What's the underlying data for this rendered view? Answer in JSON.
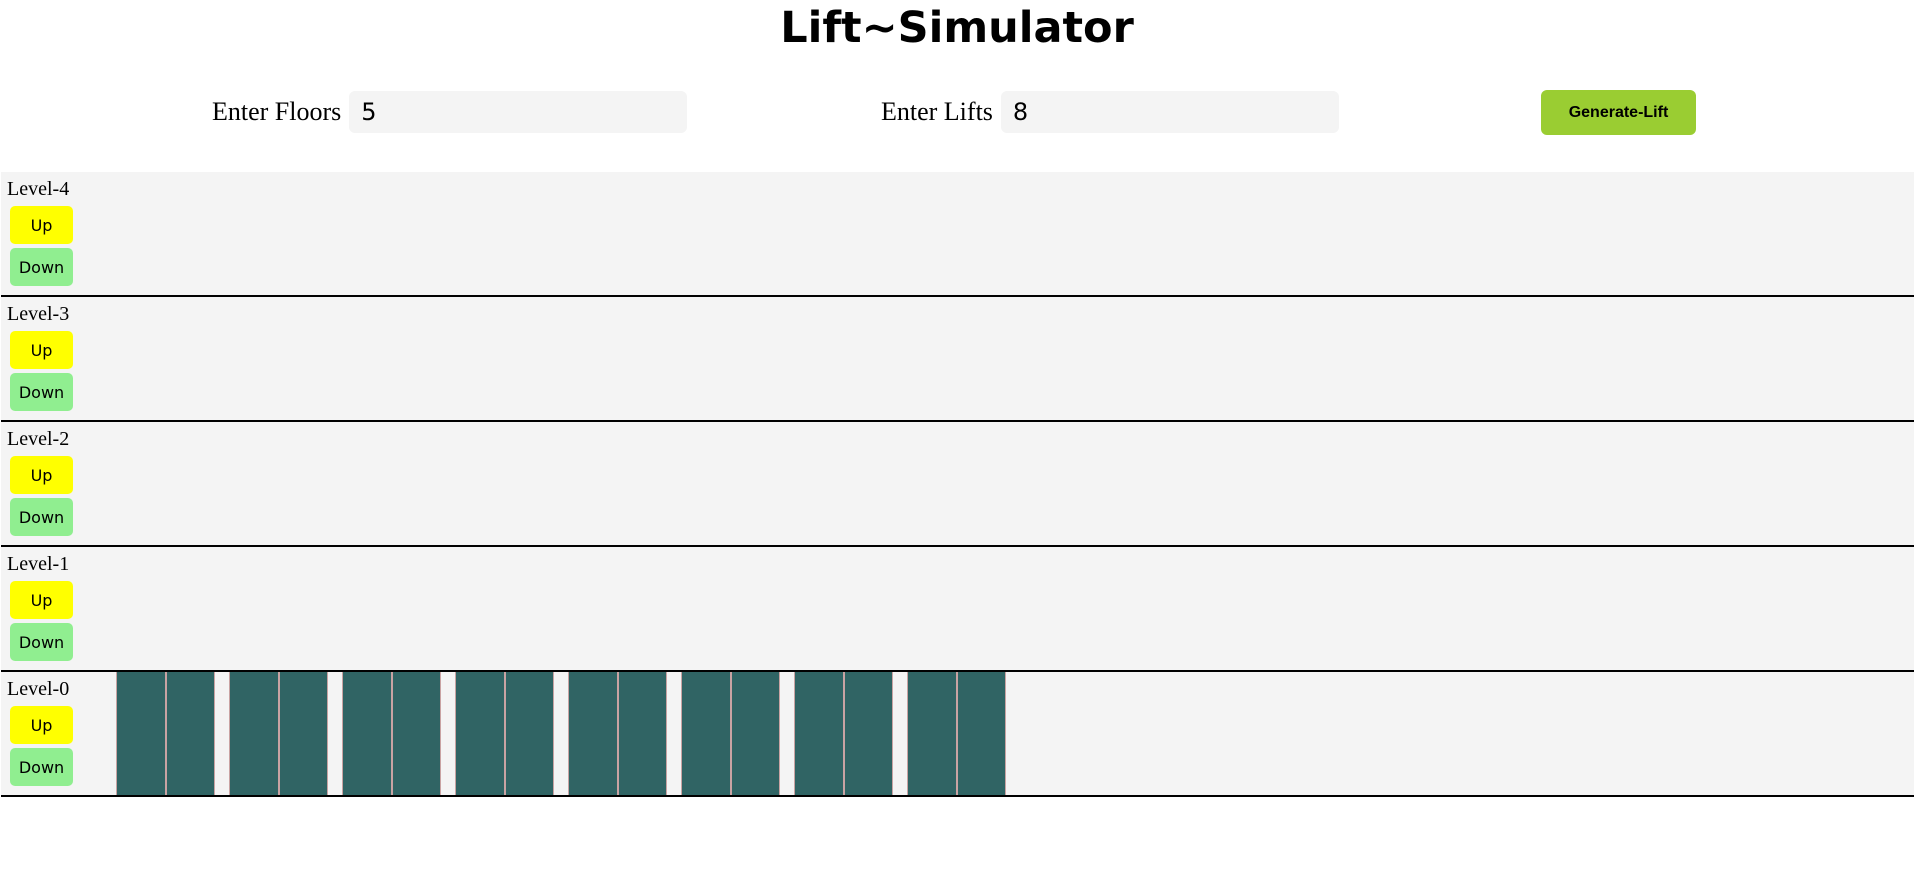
{
  "header": {
    "title": "Lift~Simulator"
  },
  "controls": {
    "floors_label": "Enter Floors",
    "floors_value": "5",
    "lifts_label": "Enter Lifts",
    "lifts_value": "8",
    "generate_label": "Generate-Lift"
  },
  "floors": [
    {
      "label": "Level-4",
      "up": "Up",
      "down": "Down"
    },
    {
      "label": "Level-3",
      "up": "Up",
      "down": "Down"
    },
    {
      "label": "Level-2",
      "up": "Up",
      "down": "Down"
    },
    {
      "label": "Level-1",
      "up": "Up",
      "down": "Down"
    },
    {
      "label": "Level-0",
      "up": "Up",
      "down": "Down"
    }
  ],
  "lift_count": 8,
  "colors": {
    "up_button": "#ffff00",
    "down_button": "#90ee90",
    "generate_button": "#9acd32",
    "lift_door": "#306464",
    "floor_bg": "#f4f4f4"
  }
}
